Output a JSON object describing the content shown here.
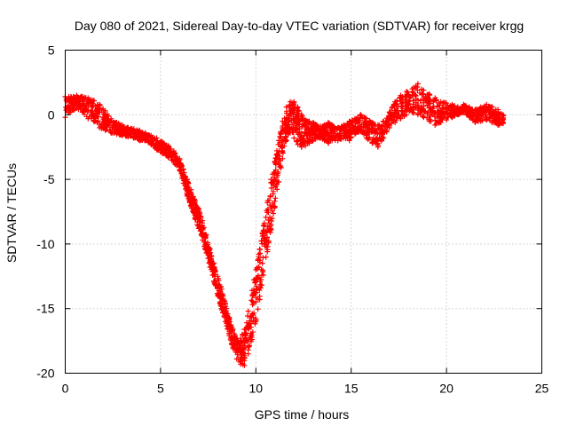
{
  "chart_data": {
    "type": "scatter",
    "title": "Day 080 of 2021, Sidereal Day-to-day VTEC variation (SDTVAR) for receiver krgg",
    "xlabel": "GPS time / hours",
    "ylabel": "SDTVAR / TECUs",
    "xlim": [
      0,
      25
    ],
    "ylim": [
      -20,
      5
    ],
    "x_ticks": [
      0,
      5,
      10,
      15,
      20,
      25
    ],
    "y_ticks": [
      5,
      0,
      -5,
      -10,
      -15,
      -20
    ],
    "grid": true,
    "marker": "+",
    "colors": {
      "series": "#ff0000",
      "grid": "#b0b0b0",
      "axis": "#000000",
      "background": "#ffffff"
    },
    "series": [
      {
        "name": "SDTVAR",
        "band_x": [
          0.0,
          0.3,
          0.6,
          0.9,
          1.2,
          1.5,
          1.8,
          2.1,
          2.4,
          2.7,
          3.0,
          3.3,
          3.6,
          3.9,
          4.2,
          4.5,
          4.8,
          5.1,
          5.4,
          5.7,
          6.0,
          6.2,
          6.4,
          6.6,
          6.8,
          7.0,
          7.2,
          7.4,
          7.6,
          7.8,
          8.0,
          8.2,
          8.4,
          8.6,
          8.8,
          9.0,
          9.2,
          9.4,
          9.6,
          9.8,
          10.0,
          10.2,
          10.4,
          10.6,
          10.8,
          11.0,
          11.2,
          11.4,
          11.6,
          11.8,
          12.0,
          12.2,
          12.4,
          12.6,
          12.8,
          13.0,
          13.2,
          13.4,
          13.6,
          13.8,
          14.0,
          14.3,
          14.6,
          14.9,
          15.2,
          15.5,
          15.8,
          16.1,
          16.4,
          16.7,
          17.0,
          17.3,
          17.6,
          17.9,
          18.2,
          18.5,
          18.8,
          19.1,
          19.4,
          19.7,
          20.0,
          20.3,
          20.6,
          20.9,
          21.2,
          21.5,
          21.8,
          22.1,
          22.4,
          22.7,
          23.0
        ],
        "band_y_upper": [
          1.4,
          1.4,
          1.5,
          1.4,
          1.3,
          1.1,
          0.8,
          0.3,
          -0.3,
          -0.6,
          -0.8,
          -1.0,
          -1.1,
          -1.2,
          -1.4,
          -1.6,
          -1.8,
          -2.1,
          -2.4,
          -2.8,
          -3.4,
          -4.2,
          -5.0,
          -5.8,
          -6.6,
          -7.3,
          -8.2,
          -9.3,
          -10.4,
          -11.5,
          -12.5,
          -13.5,
          -14.6,
          -15.7,
          -16.6,
          -17.3,
          -17.3,
          -16.6,
          -15.2,
          -13.6,
          -12.0,
          -10.4,
          -8.6,
          -6.8,
          -5.0,
          -3.6,
          -2.0,
          -0.5,
          0.6,
          1.0,
          1.0,
          0.6,
          0.0,
          -0.4,
          -0.5,
          -0.6,
          -0.8,
          -0.9,
          -0.8,
          -0.6,
          -0.8,
          -1.0,
          -0.8,
          -0.5,
          -0.3,
          0.0,
          -0.3,
          -0.6,
          -0.8,
          -0.5,
          0.2,
          1.0,
          1.5,
          1.8,
          2.0,
          2.4,
          1.9,
          1.6,
          1.3,
          1.0,
          0.9,
          0.8,
          0.6,
          0.8,
          0.6,
          0.4,
          0.6,
          0.8,
          0.6,
          0.4,
          0.0
        ],
        "band_y_lower": [
          -0.2,
          0.2,
          0.5,
          0.2,
          -0.3,
          -0.5,
          -1.0,
          -1.2,
          -1.4,
          -1.5,
          -1.6,
          -1.7,
          -1.8,
          -2.0,
          -2.0,
          -2.3,
          -2.7,
          -3.0,
          -3.3,
          -3.7,
          -4.3,
          -5.3,
          -6.3,
          -7.1,
          -8.0,
          -8.8,
          -9.7,
          -10.7,
          -11.8,
          -12.9,
          -14.0,
          -15.0,
          -16.0,
          -17.1,
          -18.1,
          -18.9,
          -19.3,
          -19.4,
          -18.5,
          -17.4,
          -16.0,
          -14.3,
          -12.4,
          -10.6,
          -8.9,
          -7.1,
          -5.2,
          -3.4,
          -2.0,
          -1.4,
          -1.8,
          -2.3,
          -2.5,
          -2.4,
          -2.2,
          -2.0,
          -1.8,
          -1.8,
          -2.0,
          -2.2,
          -2.0,
          -2.0,
          -1.8,
          -2.0,
          -1.5,
          -1.3,
          -1.8,
          -2.2,
          -2.5,
          -1.8,
          -1.0,
          -0.6,
          -0.3,
          0.0,
          0.2,
          0.0,
          -0.2,
          -0.5,
          -0.8,
          -0.6,
          -0.4,
          -0.2,
          0.0,
          0.2,
          -0.2,
          -0.6,
          -0.5,
          -0.4,
          -0.6,
          -0.8,
          -0.7
        ]
      }
    ]
  }
}
